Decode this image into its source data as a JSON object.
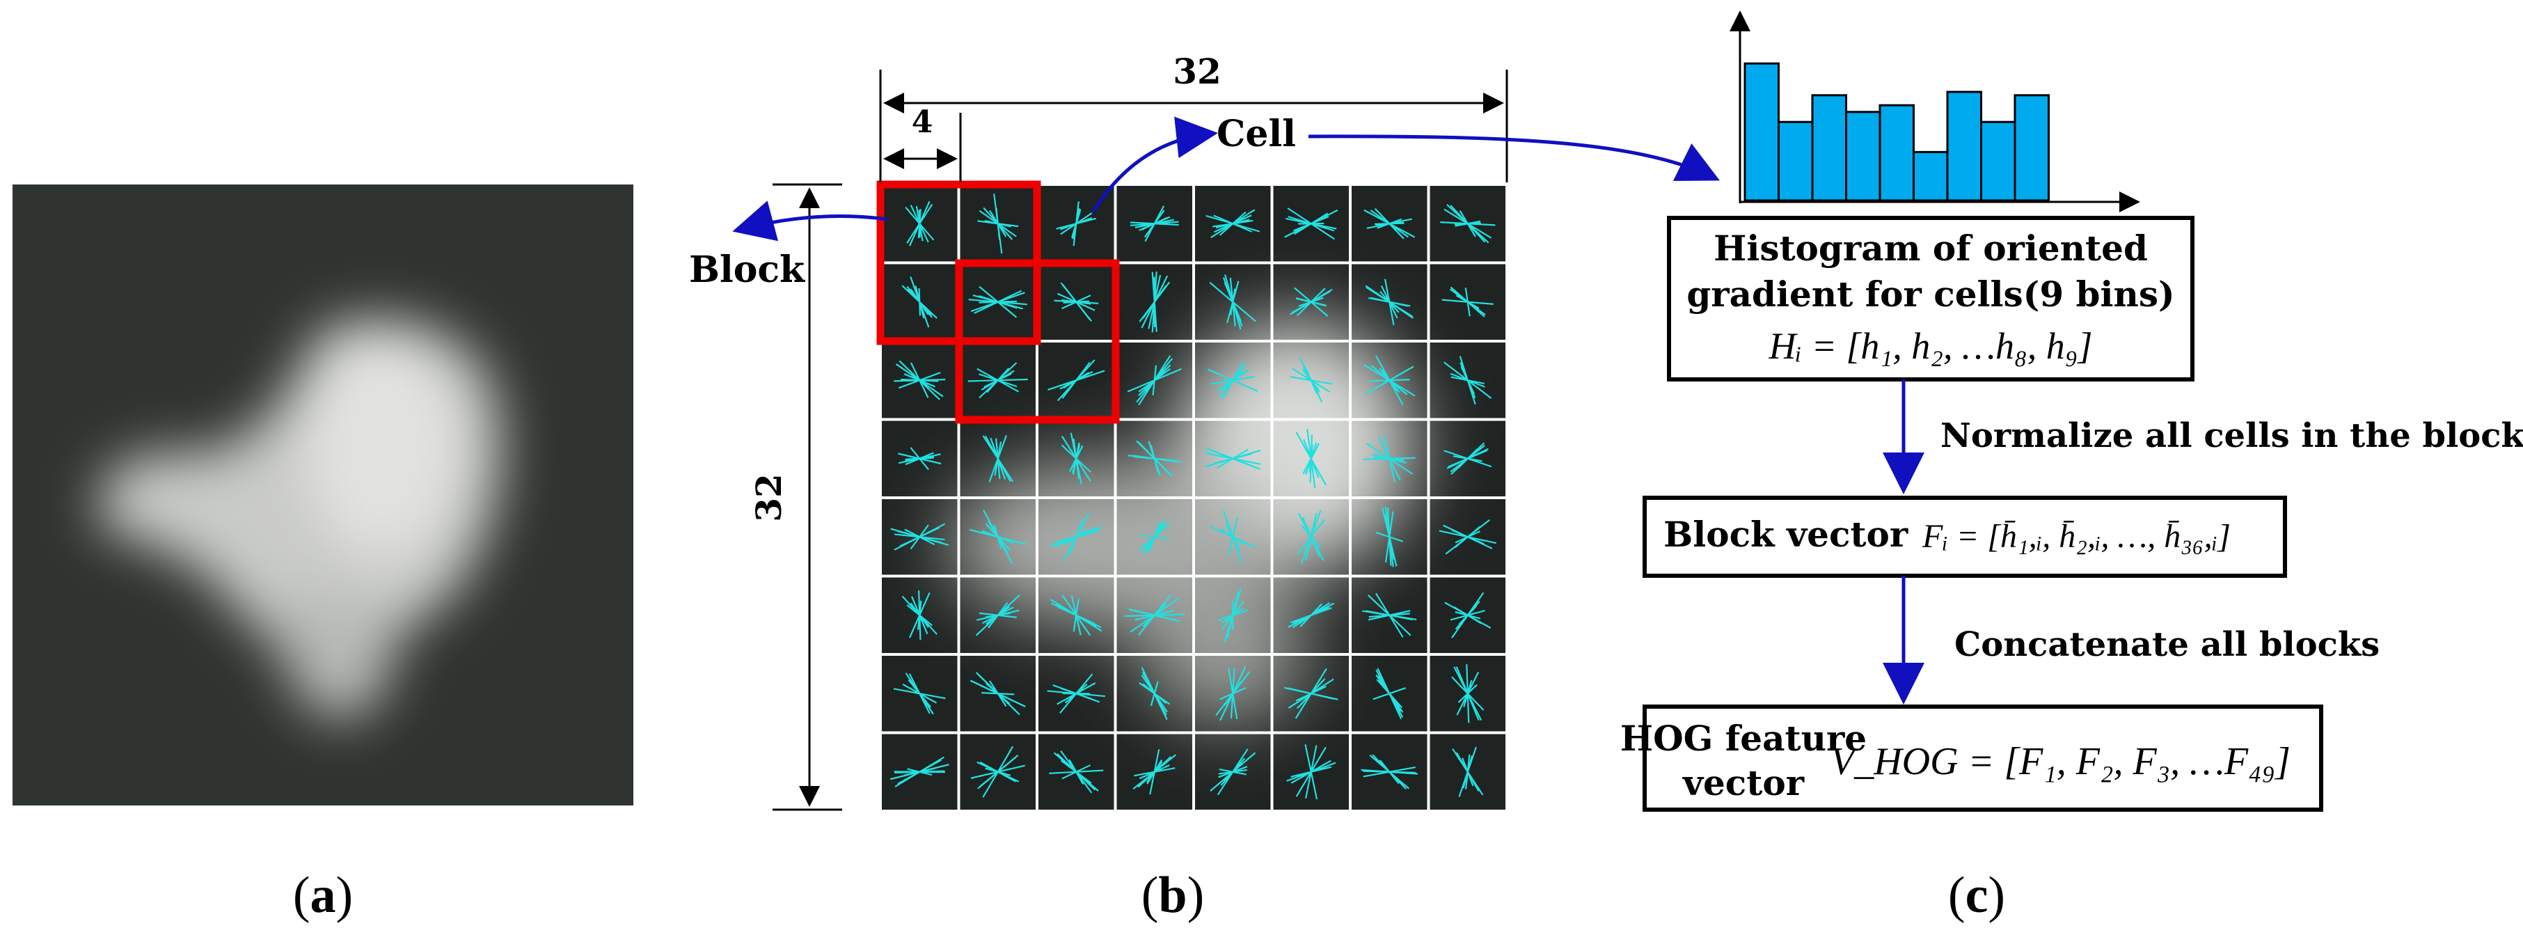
{
  "panels": {
    "a": {
      "label": "(a)",
      "letter": "a"
    },
    "b": {
      "label": "(b)",
      "letter": "b",
      "size": "32",
      "cell_size": "4",
      "cell_label": "Cell",
      "block_label": "Block",
      "grid": {
        "rows": 8,
        "cols": 8
      }
    },
    "c": {
      "label": "(c)",
      "letter": "c",
      "histogram": {
        "bins": 9,
        "values": [
          0.82,
          0.47,
          0.63,
          0.53,
          0.57,
          0.29,
          0.65,
          0.47,
          0.63
        ]
      },
      "box1_line1": "Histogram of oriented",
      "box1_line2": "gradient for cells(9 bins)",
      "box1_formula": "Hᵢ = [h₁, h₂, …h₈, h₉]",
      "step1": "Normalize all cells in the block",
      "box2_label": "Block vector",
      "box2_formula": "Fᵢ = [h̄₁,ᵢ, h̄₂,ᵢ, …, h̄₃₆,ᵢ]",
      "step2": "Concatenate all blocks",
      "box3_line1": "HOG feature",
      "box3_line2": "vector",
      "box3_formula": "V_HOG = [F₁, F₂, F₃, …F₄₉]"
    }
  },
  "colors": {
    "histogram_bar": "#00aaee",
    "arrow": "#1010c0",
    "block_outline": "#ee0000",
    "gradient_glyph": "#22e0e0"
  }
}
